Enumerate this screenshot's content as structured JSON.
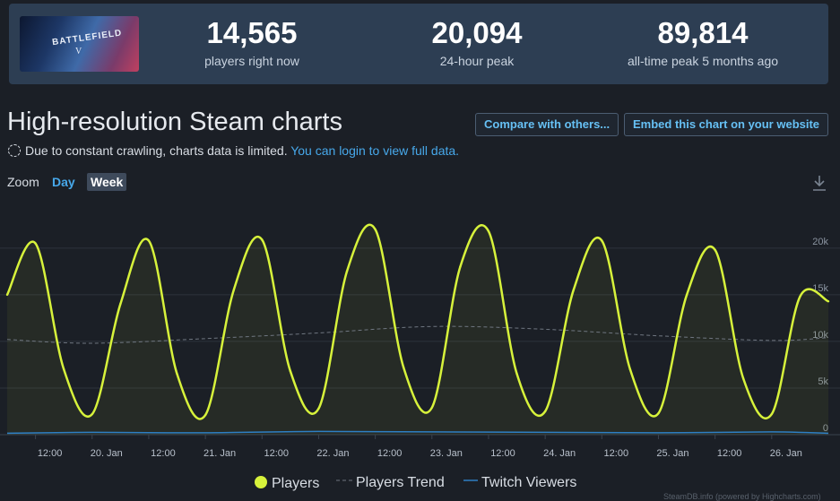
{
  "stats": [
    {
      "value": "14,565",
      "label": "players right now"
    },
    {
      "value": "20,094",
      "label": "24-hour peak"
    },
    {
      "value": "89,814",
      "label": "all-time peak 5 months ago"
    }
  ],
  "game": {
    "logo_text": "BATTLEFIELD",
    "logo_sub": "V"
  },
  "title": "High-resolution Steam charts",
  "buttons": {
    "compare": "Compare with others...",
    "embed": "Embed this chart on your website"
  },
  "notice": {
    "text": "Due to constant crawling, charts data is limited.",
    "link": "You can login to view full data."
  },
  "zoom": {
    "label": "Zoom",
    "day": "Day",
    "week": "Week",
    "selected": "Week"
  },
  "footer": "SteamDB.info (powered by Highcharts.com)",
  "colors": {
    "players": "#d7f23b",
    "trend": "#6f7680",
    "twitch": "#2e7fc4",
    "background": "#1b1f26"
  },
  "icons": {
    "download": "download-icon",
    "notice": "dashed-circle-icon"
  },
  "chart_data": {
    "type": "line",
    "y_ticks": [
      "0",
      "5k",
      "10k",
      "15k",
      "20k"
    ],
    "ylim": [
      0,
      22000
    ],
    "x_ticks": [
      "12:00",
      "20. Jan",
      "12:00",
      "21. Jan",
      "12:00",
      "22. Jan",
      "12:00",
      "23. Jan",
      "12:00",
      "24. Jan",
      "12:00",
      "25. Jan",
      "12:00",
      "26. Jan"
    ],
    "grid": true,
    "legend": "bottom-center",
    "series": [
      {
        "name": "Players",
        "x": [
          "19. Jan 06:00",
          "19. Jan 12:00",
          "19. Jan 18:00",
          "20. Jan 00:00",
          "20. Jan 06:00",
          "20. Jan 12:00",
          "20. Jan 18:00",
          "21. Jan 00:00",
          "21. Jan 06:00",
          "21. Jan 12:00",
          "21. Jan 18:00",
          "22. Jan 00:00",
          "22. Jan 06:00",
          "22. Jan 12:00",
          "22. Jan 18:00",
          "23. Jan 00:00",
          "23. Jan 06:00",
          "23. Jan 12:00",
          "23. Jan 18:00",
          "24. Jan 00:00",
          "24. Jan 06:00",
          "24. Jan 12:00",
          "24. Jan 18:00",
          "25. Jan 00:00",
          "25. Jan 06:00",
          "25. Jan 12:00",
          "25. Jan 18:00",
          "26. Jan 00:00",
          "26. Jan 06:00",
          "26. Jan 12:00"
        ],
        "values": [
          15000,
          20500,
          7000,
          2200,
          14000,
          20800,
          6500,
          2100,
          15500,
          20900,
          6800,
          2800,
          17500,
          22000,
          7200,
          2900,
          18000,
          21800,
          6500,
          2500,
          15500,
          20800,
          7000,
          2300,
          15000,
          19800,
          6000,
          2200,
          14800,
          14300
        ]
      },
      {
        "name": "Players Trend",
        "x": [
          "19. Jan 06:00",
          "20. Jan 00:00",
          "21. Jan 00:00",
          "22. Jan 00:00",
          "23. Jan 00:00",
          "24. Jan 00:00",
          "25. Jan 00:00",
          "26. Jan 00:00",
          "26. Jan 12:00"
        ],
        "values": [
          10200,
          9800,
          10300,
          10900,
          11600,
          11300,
          10600,
          10100,
          10400
        ]
      },
      {
        "name": "Twitch Viewers",
        "x": [
          "19. Jan 06:00",
          "20. Jan 00:00",
          "21. Jan 00:00",
          "22. Jan 00:00",
          "23. Jan 00:00",
          "24. Jan 00:00",
          "25. Jan 00:00",
          "26. Jan 00:00",
          "26. Jan 12:00"
        ],
        "values": [
          150,
          250,
          200,
          350,
          300,
          250,
          200,
          300,
          150
        ]
      }
    ]
  }
}
